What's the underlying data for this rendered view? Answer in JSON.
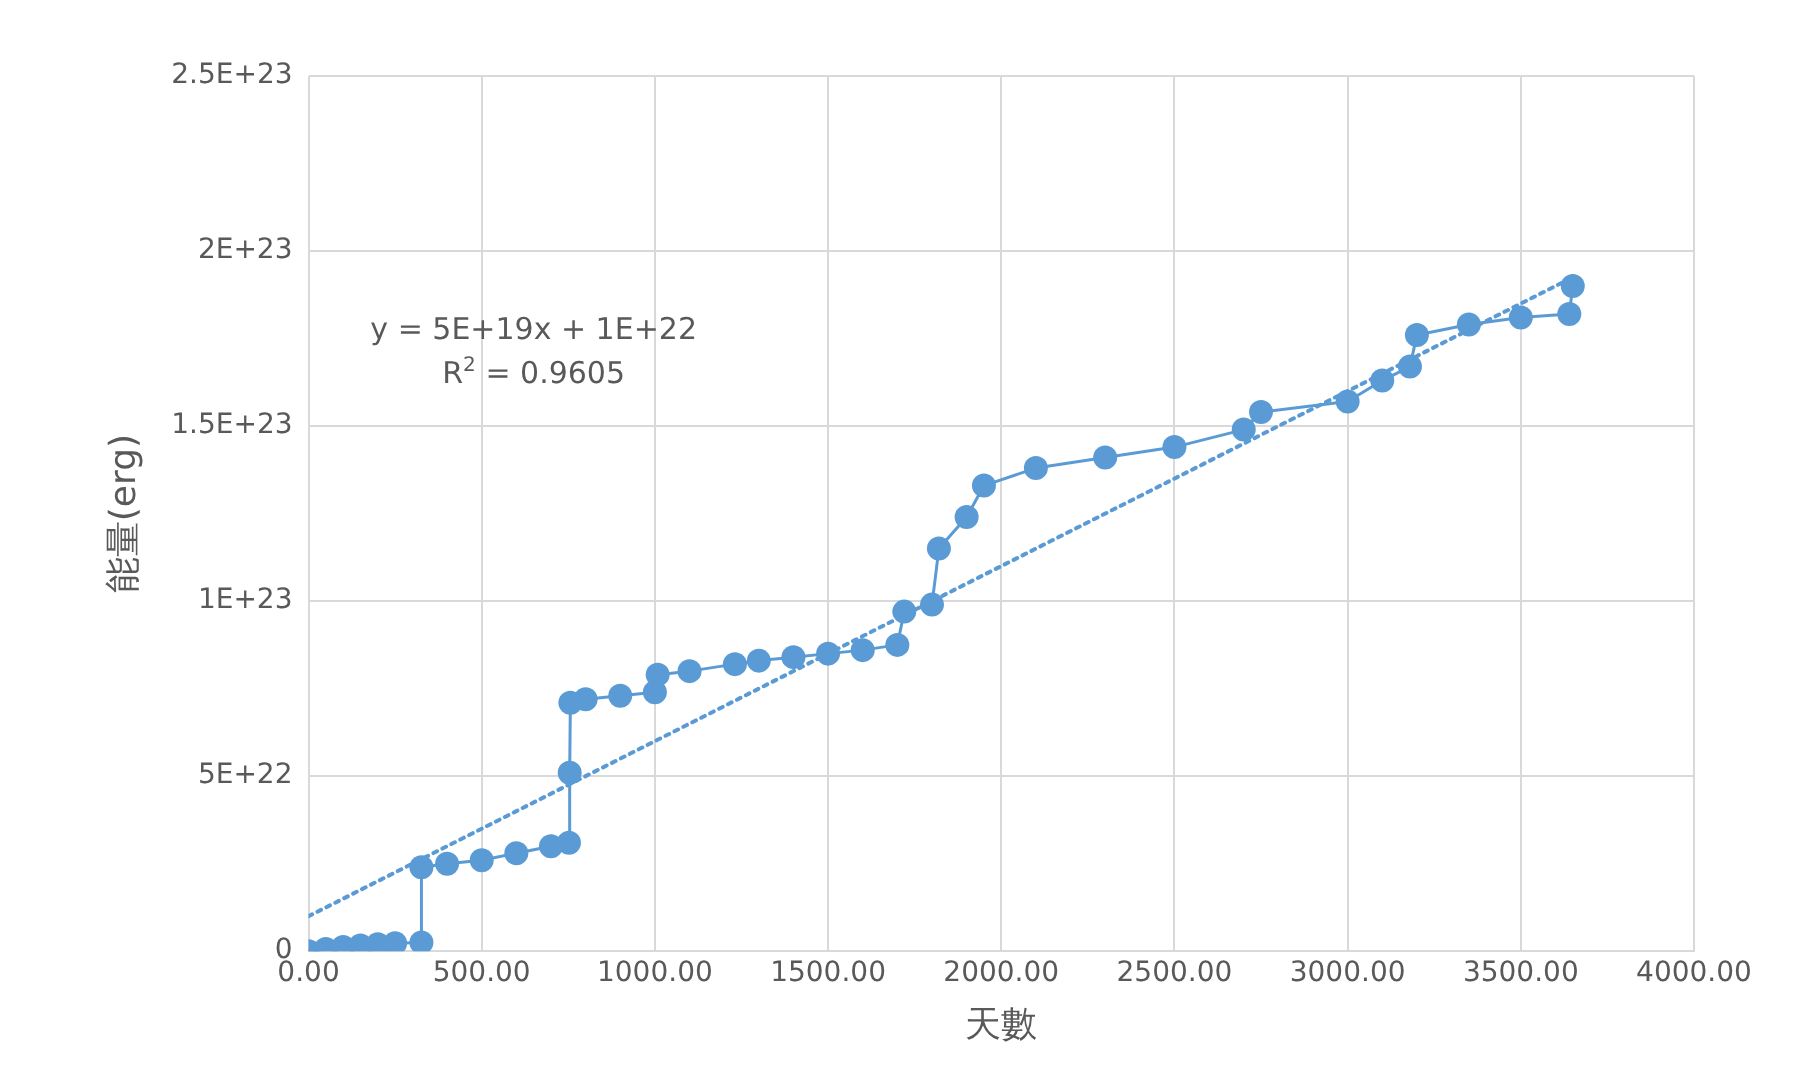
{
  "chart_data": {
    "type": "line",
    "xlabel": "天數",
    "ylabel": "能量(erg)",
    "annotations": [
      "y = 5E+19x + 1E+22",
      "R$^{2}$ = 0.9605"
    ],
    "xlim": [
      0,
      4000
    ],
    "xticks": [
      {
        "value": 0,
        "label": "0.00"
      },
      {
        "value": 500,
        "label": "500.00"
      },
      {
        "value": 1000,
        "label": "1000.00"
      },
      {
        "value": 1500,
        "label": "1500.00"
      },
      {
        "value": 2000,
        "label": "2000.00"
      },
      {
        "value": 2500,
        "label": "2500.00"
      },
      {
        "value": 3000,
        "label": "3000.00"
      },
      {
        "value": 3500,
        "label": "3500.00"
      },
      {
        "value": 4000,
        "label": "4000.00"
      }
    ],
    "ylim": [
      0,
      2.5e+23
    ],
    "yticks": [
      0,
      {
        "value": 5e+22,
        "label": "5E+22"
      },
      {
        "value": 1e+23,
        "label": "1E+23"
      },
      {
        "value": 1.5e+23,
        "label": "1.5E+23"
      },
      {
        "value": 2e+23,
        "label": "2E+23"
      },
      {
        "value": 2.5e+23,
        "label": "2.5E+23"
      }
    ],
    "grid": true,
    "legend": false,
    "series": [
      {
        "marker": "circle",
        "line_style": "solid",
        "color": "#5b9bd5",
        "x": [
          0,
          50,
          100,
          150,
          200,
          250,
          326,
          326,
          400,
          500,
          600,
          700,
          752,
          754,
          756,
          800,
          900,
          1000,
          1008,
          1100,
          1231,
          1300,
          1400,
          1500,
          1600,
          1700,
          1720,
          1800,
          1820,
          1900,
          1950,
          2100,
          2300,
          2500,
          2700,
          2750,
          3000,
          3100,
          3180,
          3200,
          3350,
          3500,
          3640,
          3650
        ],
        "values": [
          0,
          6e+20,
          1.2e+21,
          1.6e+21,
          2e+21,
          2.3e+21,
          2.5e+21,
          2.4e+22,
          2.5e+22,
          2.6e+22,
          2.8e+22,
          3e+22,
          3.1e+22,
          5.1e+22,
          7.1e+22,
          7.2e+22,
          7.3e+22,
          7.4e+22,
          7.9e+22,
          8e+22,
          8.2e+22,
          8.3e+22,
          8.4e+22,
          8.5e+22,
          8.6e+22,
          8.75e+22,
          9.7e+22,
          9.9e+22,
          1.15e+23,
          1.24e+23,
          1.33e+23,
          1.38e+23,
          1.41e+23,
          1.44e+23,
          1.49e+23,
          1.54e+23,
          1.57e+23,
          1.63e+23,
          1.67e+23,
          1.76e+23,
          1.79e+23,
          1.81e+23,
          1.82e+23,
          1.9e+23
        ]
      },
      {
        "marker": "none",
        "line_style": "dotted",
        "color": "#5b9bd5",
        "x": [
          0,
          3650
        ],
        "values": [
          1e+22,
          1.925e+23
        ]
      }
    ]
  }
}
